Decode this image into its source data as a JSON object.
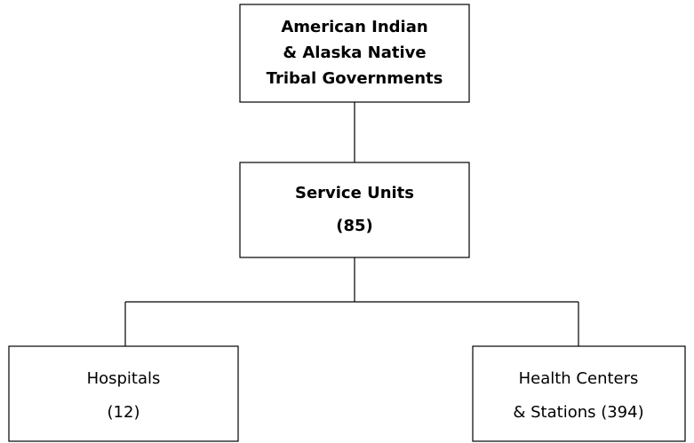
{
  "nodes": [
    {
      "lines": [
        "American Indian",
        "& Alaska Native",
        "Tribal Governments"
      ]
    },
    {
      "lines": [
        "Service Units",
        "(85)"
      ]
    },
    {
      "lines": [
        "Hospitals",
        "(12)"
      ]
    },
    {
      "lines": [
        "Health Centers",
        "& Stations (394)"
      ]
    }
  ]
}
